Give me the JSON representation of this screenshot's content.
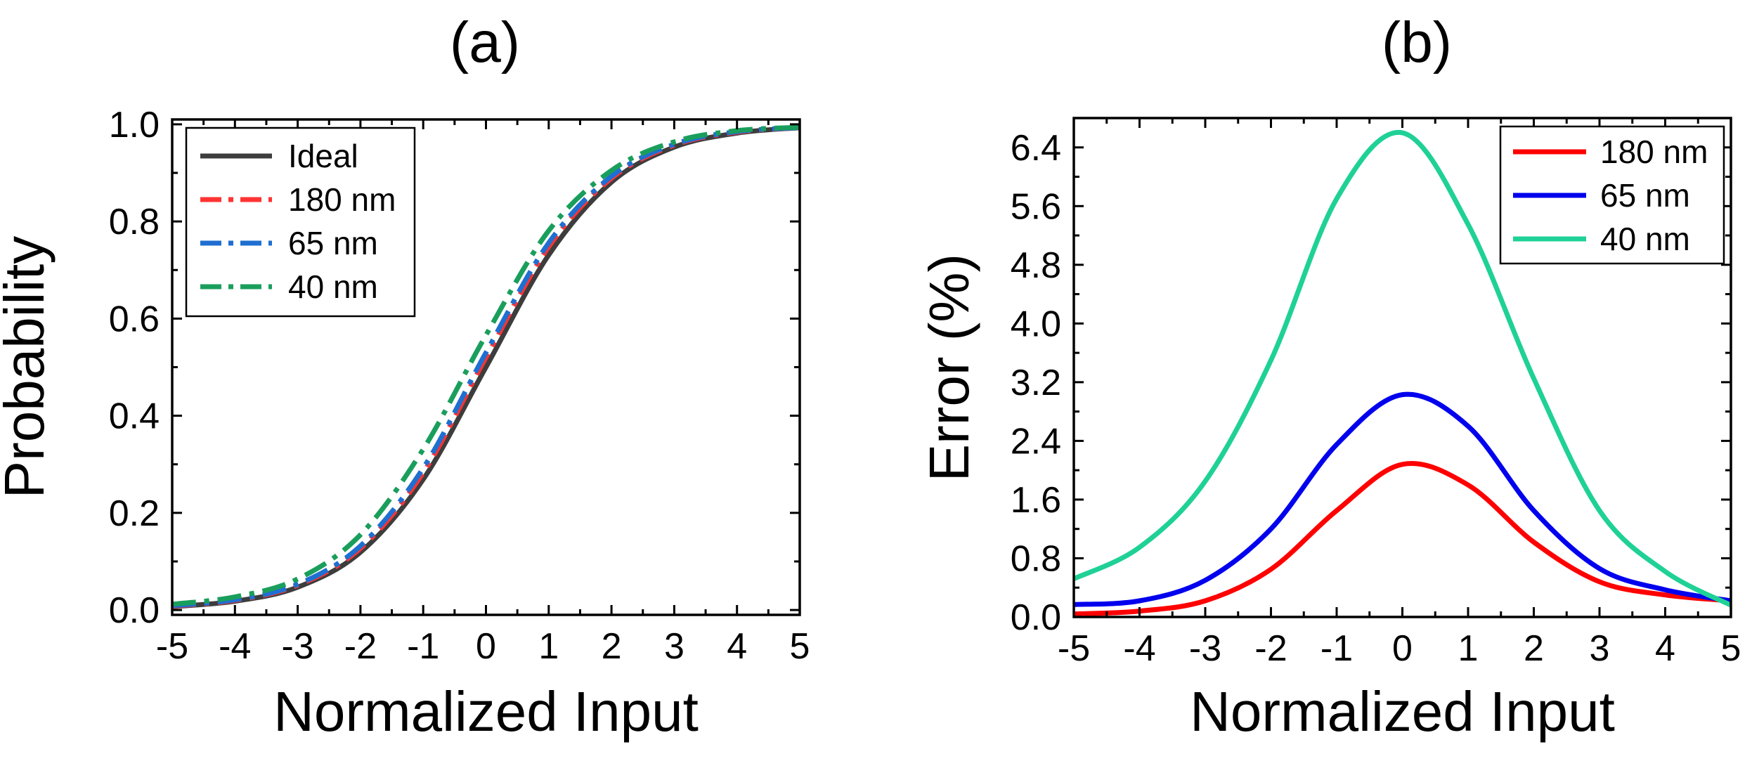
{
  "chart_data": [
    {
      "type": "line",
      "panel_label": "(a)",
      "title": "",
      "xlabel": "Normalized Input",
      "ylabel": "Probability",
      "xlim": [
        -5,
        5
      ],
      "ylim": [
        -0.01,
        1.01
      ],
      "xticks": [
        -5,
        -4,
        -3,
        -2,
        -1,
        0,
        1,
        2,
        3,
        4,
        5
      ],
      "xtick_labels": [
        "-5",
        "-4",
        "-3",
        "-2",
        "-1",
        "0",
        "1",
        "2",
        "3",
        "4",
        "5"
      ],
      "yticks": [
        0.0,
        0.2,
        0.4,
        0.6,
        0.8,
        1.0
      ],
      "ytick_labels": [
        "0.0",
        "0.2",
        "0.4",
        "0.6",
        "0.8",
        "1.0"
      ],
      "legend_position": "top-left",
      "grid": false,
      "series": [
        {
          "name": "Ideal",
          "color": "#3d3d3d",
          "style": "solid",
          "x": [
            -5,
            -4,
            -3,
            -2,
            -1,
            0,
            1,
            2,
            3,
            4,
            5
          ],
          "y": [
            0.007,
            0.018,
            0.047,
            0.119,
            0.269,
            0.5,
            0.731,
            0.881,
            0.953,
            0.982,
            0.993
          ]
        },
        {
          "name": "180 nm",
          "color": "#ff3333",
          "style": "dashdot",
          "x": [
            -5,
            -4,
            -3,
            -2,
            -1,
            0,
            1,
            2,
            3,
            4,
            5
          ],
          "y": [
            0.008,
            0.02,
            0.051,
            0.127,
            0.283,
            0.52,
            0.748,
            0.889,
            0.957,
            0.984,
            0.993
          ]
        },
        {
          "name": "65 nm",
          "color": "#1f6fd1",
          "style": "dashdot",
          "x": [
            -5,
            -4,
            -3,
            -2,
            -1,
            0,
            1,
            2,
            3,
            4,
            5
          ],
          "y": [
            0.009,
            0.021,
            0.053,
            0.132,
            0.292,
            0.53,
            0.756,
            0.893,
            0.959,
            0.985,
            0.993
          ]
        },
        {
          "name": "40 nm",
          "color": "#1a9e5c",
          "style": "dashdot",
          "x": [
            -5,
            -4,
            -3,
            -2,
            -1,
            0,
            1,
            2,
            3,
            4,
            5
          ],
          "y": [
            0.012,
            0.027,
            0.064,
            0.155,
            0.331,
            0.566,
            0.781,
            0.905,
            0.964,
            0.987,
            0.994
          ]
        }
      ]
    },
    {
      "type": "line",
      "panel_label": "(b)",
      "title": "",
      "xlabel": "Normalized Input",
      "ylabel": "Error (%)",
      "xlim": [
        -5,
        5
      ],
      "ylim": [
        0,
        6.8
      ],
      "xticks": [
        -5,
        -4,
        -3,
        -2,
        -1,
        0,
        1,
        2,
        3,
        4,
        5
      ],
      "xtick_labels": [
        "-5",
        "-4",
        "-3",
        "-2",
        "-1",
        "0",
        "1",
        "2",
        "3",
        "4",
        "5"
      ],
      "yticks": [
        0.0,
        0.8,
        1.6,
        2.4,
        3.2,
        4.0,
        4.8,
        5.6,
        6.4
      ],
      "ytick_labels": [
        "0.0",
        "0.8",
        "1.6",
        "2.4",
        "3.2",
        "4.0",
        "4.8",
        "5.6",
        "6.4"
      ],
      "legend_position": "top-right",
      "grid": false,
      "series": [
        {
          "name": "180 nm",
          "color": "#ff0000",
          "style": "solid",
          "x": [
            -5,
            -4,
            -3,
            -2,
            -1,
            0,
            1,
            2,
            3,
            4,
            5
          ],
          "y": [
            0.04,
            0.08,
            0.22,
            0.65,
            1.45,
            2.08,
            1.8,
            1.02,
            0.48,
            0.3,
            0.22
          ]
        },
        {
          "name": "65 nm",
          "color": "#0000ee",
          "style": "solid",
          "x": [
            -5,
            -4,
            -3,
            -2,
            -1,
            0,
            1,
            2,
            3,
            4,
            5
          ],
          "y": [
            0.17,
            0.22,
            0.5,
            1.2,
            2.35,
            3.03,
            2.6,
            1.45,
            0.66,
            0.37,
            0.22
          ]
        },
        {
          "name": "40 nm",
          "color": "#1fd196",
          "style": "solid",
          "x": [
            -5,
            -4,
            -3,
            -2,
            -1,
            0,
            1,
            2,
            3,
            4,
            5
          ],
          "y": [
            0.52,
            0.95,
            1.85,
            3.5,
            5.7,
            6.6,
            5.35,
            3.25,
            1.45,
            0.62,
            0.16
          ]
        }
      ]
    }
  ]
}
